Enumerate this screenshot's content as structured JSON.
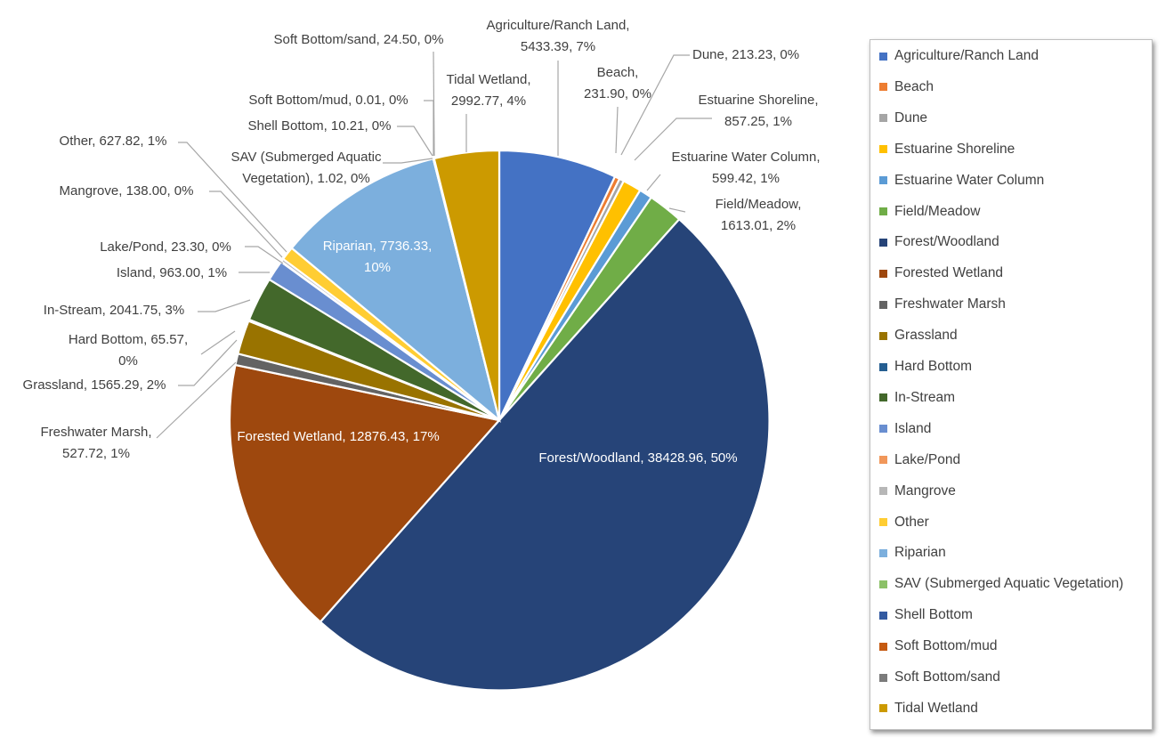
{
  "chart_data": {
    "type": "pie",
    "series": [
      {
        "name": "Agriculture/Ranch Land",
        "value": 5433.39,
        "label": "Agriculture/Ranch Land, 5433.39, 7%",
        "color": "#4472c4"
      },
      {
        "name": "Beach",
        "value": 231.9,
        "label": "Beach, 231.90, 0%",
        "color": "#ed7d31"
      },
      {
        "name": "Dune",
        "value": 213.23,
        "label": "Dune, 213.23, 0%",
        "color": "#a5a5a5"
      },
      {
        "name": "Estuarine Shoreline",
        "value": 857.25,
        "label": "Estuarine Shoreline, 857.25, 1%",
        "color": "#ffc000"
      },
      {
        "name": "Estuarine Water Column",
        "value": 599.42,
        "label": "Estuarine Water Column, 599.42, 1%",
        "color": "#5b9bd5"
      },
      {
        "name": "Field/Meadow",
        "value": 1613.01,
        "label": "Field/Meadow, 1613.01, 2%",
        "color": "#70ad47"
      },
      {
        "name": "Forest/Woodland",
        "value": 38428.96,
        "label": "Forest/Woodland, 38428.96, 50%",
        "color": "#264478"
      },
      {
        "name": "Forested Wetland",
        "value": 12876.43,
        "label": "Forested Wetland, 12876.43, 17%",
        "color": "#9e480e"
      },
      {
        "name": "Freshwater Marsh",
        "value": 527.72,
        "label": "Freshwater Marsh, 527.72, 1%",
        "color": "#636363"
      },
      {
        "name": "Grassland",
        "value": 1565.29,
        "label": "Grassland, 1565.29, 2%",
        "color": "#997300"
      },
      {
        "name": "Hard Bottom",
        "value": 65.57,
        "label": "Hard Bottom, 65.57, 0%",
        "color": "#255e91"
      },
      {
        "name": "In-Stream",
        "value": 2041.75,
        "label": "In-Stream, 2041.75, 3%",
        "color": "#43682b"
      },
      {
        "name": "Island",
        "value": 963.0,
        "label": "Island, 963.00, 1%",
        "color": "#698ed0"
      },
      {
        "name": "Lake/Pond",
        "value": 23.3,
        "label": "Lake/Pond, 23.30, 0%",
        "color": "#f1975a"
      },
      {
        "name": "Mangrove",
        "value": 138.0,
        "label": "Mangrove, 138.00, 0%",
        "color": "#b7b7b7"
      },
      {
        "name": "Other",
        "value": 627.82,
        "label": "Other, 627.82, 1%",
        "color": "#ffcd33"
      },
      {
        "name": "Riparian",
        "value": 7736.33,
        "label": "Riparian, 7736.33, 10%",
        "color": "#7cafdd"
      },
      {
        "name": "SAV (Submerged Aquatic Vegetation)",
        "value": 1.02,
        "label": "SAV (Submerged Aquatic Vegetation), 1.02, 0%",
        "color": "#8cc168"
      },
      {
        "name": "Shell Bottom",
        "value": 10.21,
        "label": "Shell Bottom, 10.21, 0%",
        "color": "#335aa1"
      },
      {
        "name": "Soft Bottom/mud",
        "value": 0.01,
        "label": "Soft Bottom/mud, 0.01, 0%",
        "color": "#c55a11"
      },
      {
        "name": "Soft Bottom/sand",
        "value": 24.5,
        "label": "Soft Bottom/sand, 24.50, 0%",
        "color": "#7b7b7b"
      },
      {
        "name": "Tidal Wetland",
        "value": 2992.77,
        "label": "Tidal Wetland, 2992.77, 4%",
        "color": "#cc9a00"
      }
    ],
    "legend_position": "right"
  }
}
